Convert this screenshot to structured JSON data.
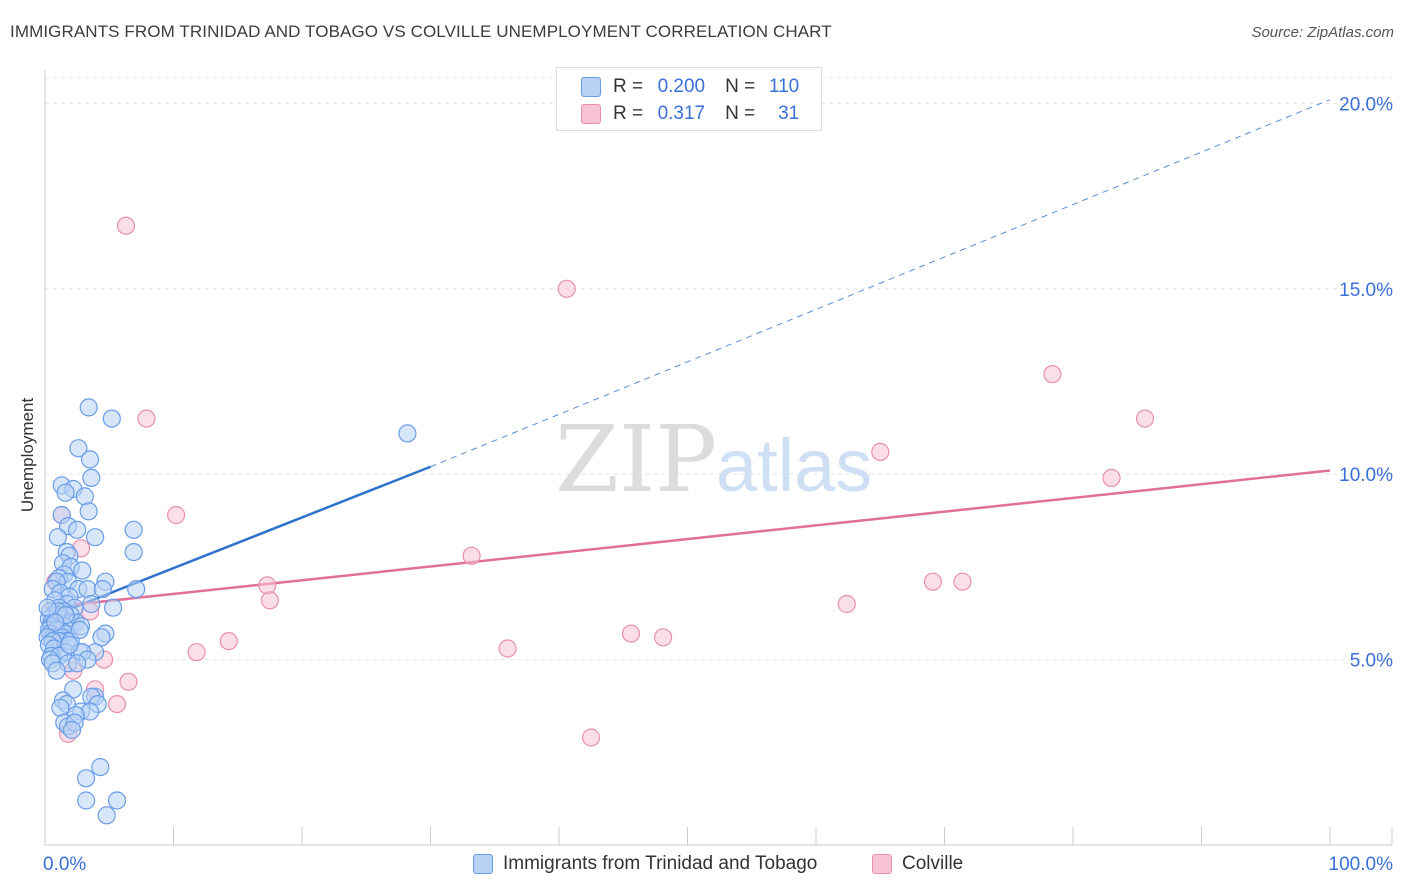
{
  "chart_data": {
    "type": "scatter",
    "title": "IMMIGRANTS FROM TRINIDAD AND TOBAGO VS COLVILLE UNEMPLOYMENT CORRELATION CHART",
    "source": "Source: ZipAtlas.com",
    "xlabel": "",
    "ylabel": "Unemployment",
    "xlim": [
      0,
      100
    ],
    "ylim": [
      0,
      20.9
    ],
    "x_tick_labels": [
      "0.0%",
      "100.0%"
    ],
    "y_ticks": [
      5,
      10,
      15,
      20
    ],
    "y_tick_labels": [
      "5.0%",
      "10.0%",
      "15.0%",
      "20.0%"
    ],
    "grid": true,
    "watermark": "ZIPatlas",
    "legend": {
      "position": "top-center",
      "entries": [
        {
          "r_label": "R =",
          "r_value": "0.200",
          "n_label": "N =",
          "n_value": "110"
        },
        {
          "r_label": "R =",
          "r_value": "0.317",
          "n_label": "N =",
          "n_value": "31"
        }
      ]
    },
    "series": [
      {
        "name": "Immigrants from Trinidad and Tobago",
        "color": "#6a9de8",
        "fill": "#b8d2f4",
        "line_color": "#2e72cc",
        "trend": {
          "x0": 0,
          "y0": 6.1,
          "x1": 30,
          "y1": 10.2,
          "dashed_to_x": 100,
          "dashed_to_y": 20.1
        },
        "points": [
          [
            3.4,
            11.8
          ],
          [
            5.2,
            11.5
          ],
          [
            2.6,
            10.7
          ],
          [
            3.5,
            10.4
          ],
          [
            3.6,
            9.9
          ],
          [
            1.3,
            9.7
          ],
          [
            2.2,
            9.6
          ],
          [
            1.6,
            9.5
          ],
          [
            3.1,
            9.4
          ],
          [
            3.4,
            9.0
          ],
          [
            1.3,
            8.9
          ],
          [
            1.8,
            8.6
          ],
          [
            2.5,
            8.5
          ],
          [
            6.9,
            8.5
          ],
          [
            1.0,
            8.3
          ],
          [
            3.9,
            8.3
          ],
          [
            6.9,
            7.9
          ],
          [
            1.7,
            7.9
          ],
          [
            1.9,
            7.8
          ],
          [
            1.4,
            7.6
          ],
          [
            2.0,
            7.5
          ],
          [
            2.9,
            7.4
          ],
          [
            1.5,
            7.3
          ],
          [
            1.1,
            7.2
          ],
          [
            1.8,
            7.1
          ],
          [
            0.9,
            7.1
          ],
          [
            4.7,
            7.1
          ],
          [
            2.6,
            6.9
          ],
          [
            3.3,
            6.9
          ],
          [
            0.6,
            6.9
          ],
          [
            1.2,
            6.8
          ],
          [
            4.5,
            6.9
          ],
          [
            7.1,
            6.9
          ],
          [
            1.9,
            6.7
          ],
          [
            0.8,
            6.6
          ],
          [
            1.7,
            6.5
          ],
          [
            3.6,
            6.5
          ],
          [
            2.3,
            6.4
          ],
          [
            5.3,
            6.4
          ],
          [
            1.1,
            6.4
          ],
          [
            0.4,
            6.3
          ],
          [
            1.5,
            6.3
          ],
          [
            0.7,
            6.2
          ],
          [
            2.0,
            6.2
          ],
          [
            1.0,
            6.2
          ],
          [
            0.3,
            6.1
          ],
          [
            1.3,
            6.1
          ],
          [
            0.5,
            6.0
          ],
          [
            2.1,
            6.0
          ],
          [
            1.8,
            6.0
          ],
          [
            2.4,
            6.0
          ],
          [
            0.8,
            5.9
          ],
          [
            0.5,
            5.9
          ],
          [
            2.8,
            5.9
          ],
          [
            1.5,
            5.9
          ],
          [
            0.3,
            5.8
          ],
          [
            1.2,
            5.8
          ],
          [
            0.9,
            5.8
          ],
          [
            0.4,
            5.7
          ],
          [
            1.6,
            5.7
          ],
          [
            0.6,
            5.6
          ],
          [
            0.9,
            5.6
          ],
          [
            1.3,
            5.6
          ],
          [
            0.2,
            5.6
          ],
          [
            4.7,
            5.7
          ],
          [
            4.4,
            5.6
          ],
          [
            1.7,
            5.5
          ],
          [
            1.1,
            5.5
          ],
          [
            0.6,
            5.5
          ],
          [
            2.0,
            5.5
          ],
          [
            0.3,
            5.4
          ],
          [
            0.7,
            5.3
          ],
          [
            1.6,
            5.2
          ],
          [
            2.7,
            5.2
          ],
          [
            3.9,
            5.2
          ],
          [
            2.9,
            5.2
          ],
          [
            0.5,
            5.1
          ],
          [
            1.1,
            5.1
          ],
          [
            3.3,
            5.0
          ],
          [
            0.4,
            5.0
          ],
          [
            0.6,
            4.9
          ],
          [
            1.8,
            4.9
          ],
          [
            2.5,
            4.9
          ],
          [
            0.9,
            4.7
          ],
          [
            2.2,
            4.2
          ],
          [
            3.9,
            4.0
          ],
          [
            3.6,
            4.0
          ],
          [
            1.4,
            3.9
          ],
          [
            4.1,
            3.8
          ],
          [
            1.7,
            3.8
          ],
          [
            1.2,
            3.7
          ],
          [
            2.8,
            3.6
          ],
          [
            3.5,
            3.6
          ],
          [
            2.4,
            3.5
          ],
          [
            1.5,
            3.3
          ],
          [
            1.8,
            3.2
          ],
          [
            2.3,
            3.3
          ],
          [
            2.1,
            3.1
          ],
          [
            4.3,
            2.1
          ],
          [
            3.2,
            1.8
          ],
          [
            3.2,
            1.2
          ],
          [
            5.6,
            1.2
          ],
          [
            4.8,
            0.8
          ],
          [
            28.2,
            11.1
          ],
          [
            1.0,
            6.3
          ],
          [
            1.6,
            6.2
          ],
          [
            0.8,
            6.0
          ],
          [
            2.7,
            5.8
          ],
          [
            0.2,
            6.4
          ],
          [
            1.9,
            5.4
          ]
        ]
      },
      {
        "name": "Colville",
        "color": "#e890ae",
        "fill": "#f7c3d4",
        "line_color": "#e0709a",
        "trend": {
          "x0": 0,
          "y0": 6.4,
          "x1": 100,
          "y1": 10.1
        },
        "points": [
          [
            6.3,
            16.7
          ],
          [
            40.6,
            15.0
          ],
          [
            78.4,
            12.7
          ],
          [
            7.9,
            11.5
          ],
          [
            85.6,
            11.5
          ],
          [
            65.0,
            10.6
          ],
          [
            83.0,
            9.9
          ],
          [
            10.2,
            8.9
          ],
          [
            1.3,
            8.9
          ],
          [
            2.8,
            8.0
          ],
          [
            33.2,
            7.8
          ],
          [
            0.8,
            7.1
          ],
          [
            69.1,
            7.1
          ],
          [
            71.4,
            7.1
          ],
          [
            17.3,
            7.0
          ],
          [
            17.5,
            6.6
          ],
          [
            62.4,
            6.5
          ],
          [
            3.5,
            6.3
          ],
          [
            1.0,
            5.9
          ],
          [
            45.6,
            5.7
          ],
          [
            48.1,
            5.6
          ],
          [
            14.3,
            5.5
          ],
          [
            36.0,
            5.3
          ],
          [
            11.8,
            5.2
          ],
          [
            4.6,
            5.0
          ],
          [
            2.2,
            4.7
          ],
          [
            6.5,
            4.4
          ],
          [
            3.9,
            4.2
          ],
          [
            5.6,
            3.8
          ],
          [
            1.8,
            3.0
          ],
          [
            42.5,
            2.9
          ]
        ]
      }
    ]
  }
}
